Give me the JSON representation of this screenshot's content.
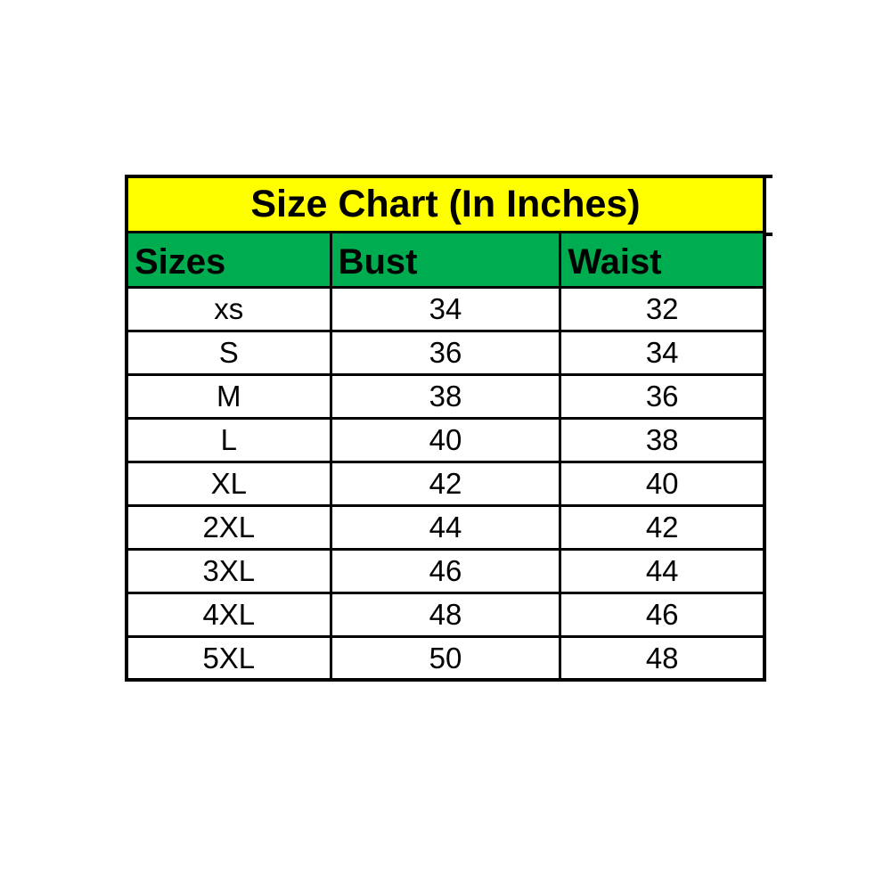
{
  "page": {
    "background_color": "#ffffff"
  },
  "chart_data": {
    "type": "table",
    "title": "Size Chart (In Inches)",
    "columns": [
      "Sizes",
      "Bust",
      "Waist"
    ],
    "rows": [
      [
        "xs",
        "34",
        "32"
      ],
      [
        "S",
        "36",
        "34"
      ],
      [
        "M",
        "38",
        "36"
      ],
      [
        "L",
        "40",
        "38"
      ],
      [
        "XL",
        "42",
        "40"
      ],
      [
        "2XL",
        "44",
        "42"
      ],
      [
        "3XL",
        "46",
        "44"
      ],
      [
        "4XL",
        "48",
        "46"
      ],
      [
        "5XL",
        "50",
        "48"
      ]
    ],
    "layout": {
      "title_alignment": "center",
      "header_alignment": "left",
      "data_alignment": "center",
      "grid": "on"
    },
    "colors": {
      "title_background": "#ffff00",
      "header_background": "#00ac50",
      "cell_background": "#ffffff",
      "border": "#000000",
      "text": "#000000",
      "page_background": "#ffffff"
    }
  }
}
